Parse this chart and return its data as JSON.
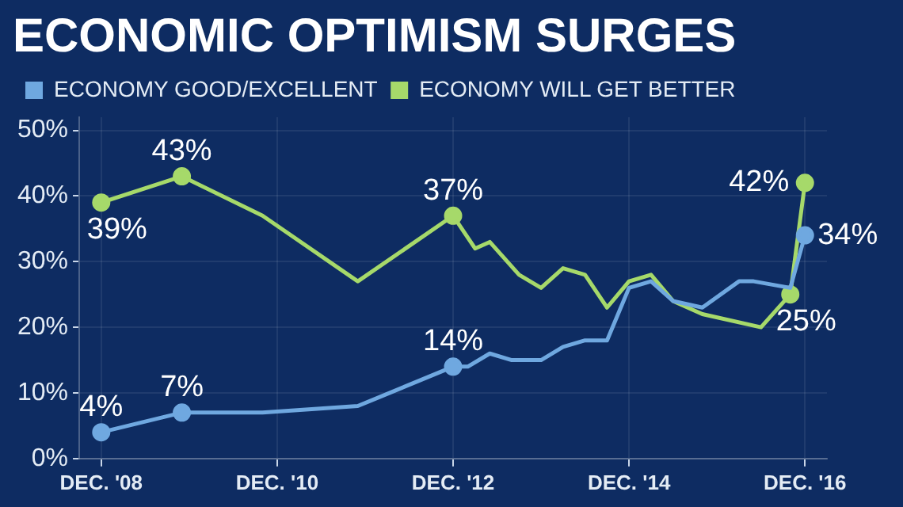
{
  "chart_data": {
    "type": "line",
    "title": "ECONOMIC OPTIMISM SURGES",
    "xlim": [
      "2008-09",
      "2017-03"
    ],
    "xticks": [
      {
        "value": "2008-12",
        "label": "DEC. '08"
      },
      {
        "value": "2010-12",
        "label": "DEC. '10"
      },
      {
        "value": "2012-12",
        "label": "DEC. '12"
      },
      {
        "value": "2014-12",
        "label": "DEC. '14"
      },
      {
        "value": "2016-12",
        "label": "DEC. '16"
      }
    ],
    "ylim": [
      0,
      52
    ],
    "yticks": [
      {
        "value": 0,
        "label": "0%"
      },
      {
        "value": 10,
        "label": "10%"
      },
      {
        "value": 20,
        "label": "20%"
      },
      {
        "value": 30,
        "label": "30%"
      },
      {
        "value": 40,
        "label": "40%"
      },
      {
        "value": 50,
        "label": "50%"
      }
    ],
    "grid": true,
    "legend": "top left",
    "series": [
      {
        "name": "ECONOMY GOOD/EXCELLENT",
        "color": "#6fa8e0",
        "x": [
          "2008-12",
          "2009-11",
          "2010-10",
          "2011-11",
          "2012-12",
          "2013-02",
          "2013-05",
          "2013-08",
          "2013-12",
          "2014-03",
          "2014-06",
          "2014-09",
          "2014-12",
          "2015-03",
          "2015-06",
          "2015-10",
          "2016-03",
          "2016-05",
          "2016-10",
          "2016-12"
        ],
        "values": [
          4,
          7,
          7,
          8,
          14,
          14,
          16,
          15,
          15,
          17,
          18,
          18,
          26,
          27,
          24,
          23,
          27,
          27,
          26,
          34
        ],
        "value_labels": [
          "4%",
          "7%",
          null,
          null,
          "14%",
          null,
          null,
          null,
          null,
          null,
          null,
          null,
          null,
          null,
          null,
          null,
          null,
          null,
          null,
          "34%"
        ]
      },
      {
        "name": "ECONOMY WILL GET BETTER",
        "color": "#a6d96a",
        "x": [
          "2008-12",
          "2009-11",
          "2010-10",
          "2011-11",
          "2012-12",
          "2013-03",
          "2013-05",
          "2013-09",
          "2013-12",
          "2014-03",
          "2014-06",
          "2014-09",
          "2014-12",
          "2015-03",
          "2015-06",
          "2015-10",
          "2016-06",
          "2016-10",
          "2016-12"
        ],
        "values": [
          39,
          43,
          37,
          27,
          37,
          32,
          33,
          28,
          26,
          29,
          28,
          23,
          27,
          28,
          24,
          22,
          20,
          25,
          42
        ],
        "value_labels": [
          "39%",
          "43%",
          null,
          null,
          "37%",
          null,
          null,
          null,
          null,
          null,
          null,
          null,
          null,
          null,
          null,
          null,
          null,
          "25%",
          "42%"
        ]
      }
    ]
  }
}
